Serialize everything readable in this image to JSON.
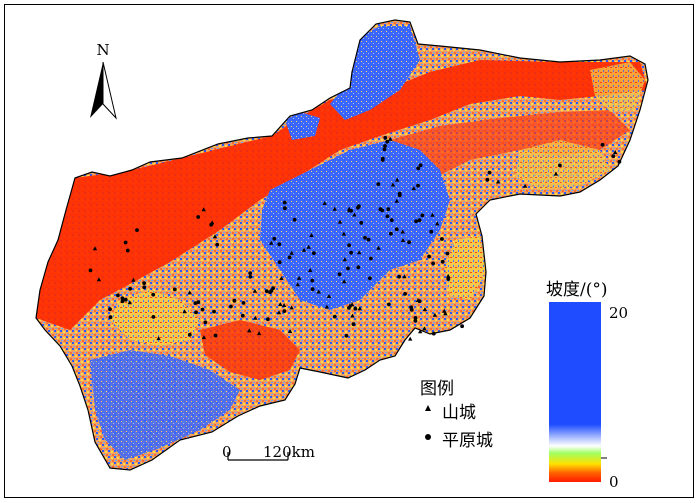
{
  "north_arrow": {
    "letter": "N"
  },
  "legend": {
    "colorbar_title": "坡度/(°)",
    "colorbar_max": "20",
    "colorbar_min": "0",
    "title": "图例",
    "items": [
      {
        "symbol": "triangle",
        "label": "山城"
      },
      {
        "symbol": "dot",
        "label": "平原城"
      }
    ]
  },
  "scale_bar": {
    "start": "0",
    "end": "120km"
  },
  "colors": {
    "low_slope": "#ff2200",
    "mid_slope": "#ffe040",
    "high_slope": "#2a5bff",
    "boundary": "#000000"
  }
}
